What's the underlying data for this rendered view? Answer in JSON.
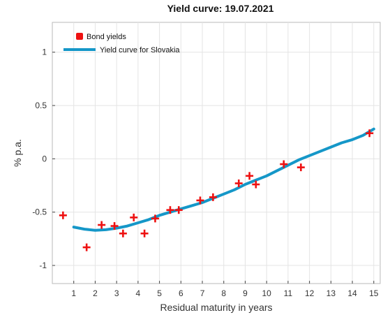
{
  "chart_data": {
    "type": "line",
    "title": "Yield curve: 19.07.2021",
    "xlabel": "Residual maturity in years",
    "ylabel": "% p.a.",
    "xlim": [
      0,
      15.3
    ],
    "ylim": [
      -1.17,
      1.28
    ],
    "xticks": [
      1,
      2,
      3,
      4,
      5,
      6,
      7,
      8,
      9,
      10,
      11,
      12,
      13,
      14,
      15
    ],
    "yticks": [
      -1,
      -0.5,
      0,
      0.5,
      1
    ],
    "xtick_labels": [
      "1",
      "2",
      "3",
      "4",
      "5",
      "6",
      "7",
      "8",
      "9",
      "10",
      "11",
      "12",
      "13",
      "14",
      "15"
    ],
    "ytick_labels": [
      "-1",
      "-0.5",
      "0",
      "0.5",
      "1"
    ],
    "grid": true,
    "legend_position": "top-left",
    "colors": {
      "points": "#ee1111",
      "curve": "#1597c8"
    },
    "series": [
      {
        "name": "Bond yields",
        "kind": "scatter",
        "x": [
          0.5,
          1.6,
          2.3,
          2.9,
          3.3,
          3.8,
          4.3,
          4.8,
          5.5,
          5.9,
          6.9,
          7.5,
          8.7,
          9.2,
          9.5,
          10.8,
          11.6,
          14.8
        ],
        "y": [
          -0.53,
          -0.83,
          -0.62,
          -0.63,
          -0.7,
          -0.55,
          -0.7,
          -0.56,
          -0.48,
          -0.48,
          -0.39,
          -0.36,
          -0.23,
          -0.16,
          -0.24,
          -0.05,
          -0.08,
          0.24
        ]
      },
      {
        "name": "Yield curve for Slovakia",
        "kind": "line",
        "x": [
          1.0,
          1.5,
          2.0,
          2.5,
          3.0,
          3.5,
          4.0,
          4.5,
          5.0,
          5.5,
          6.0,
          6.5,
          7.0,
          7.5,
          8.0,
          8.5,
          9.0,
          9.5,
          10.0,
          10.5,
          11.0,
          11.5,
          12.0,
          12.5,
          13.0,
          13.5,
          14.0,
          14.5,
          15.0
        ],
        "y": [
          -0.64,
          -0.66,
          -0.67,
          -0.665,
          -0.65,
          -0.63,
          -0.6,
          -0.57,
          -0.53,
          -0.5,
          -0.47,
          -0.44,
          -0.41,
          -0.37,
          -0.33,
          -0.29,
          -0.24,
          -0.2,
          -0.16,
          -0.11,
          -0.06,
          -0.01,
          0.03,
          0.07,
          0.11,
          0.15,
          0.18,
          0.22,
          0.28
        ]
      }
    ]
  }
}
